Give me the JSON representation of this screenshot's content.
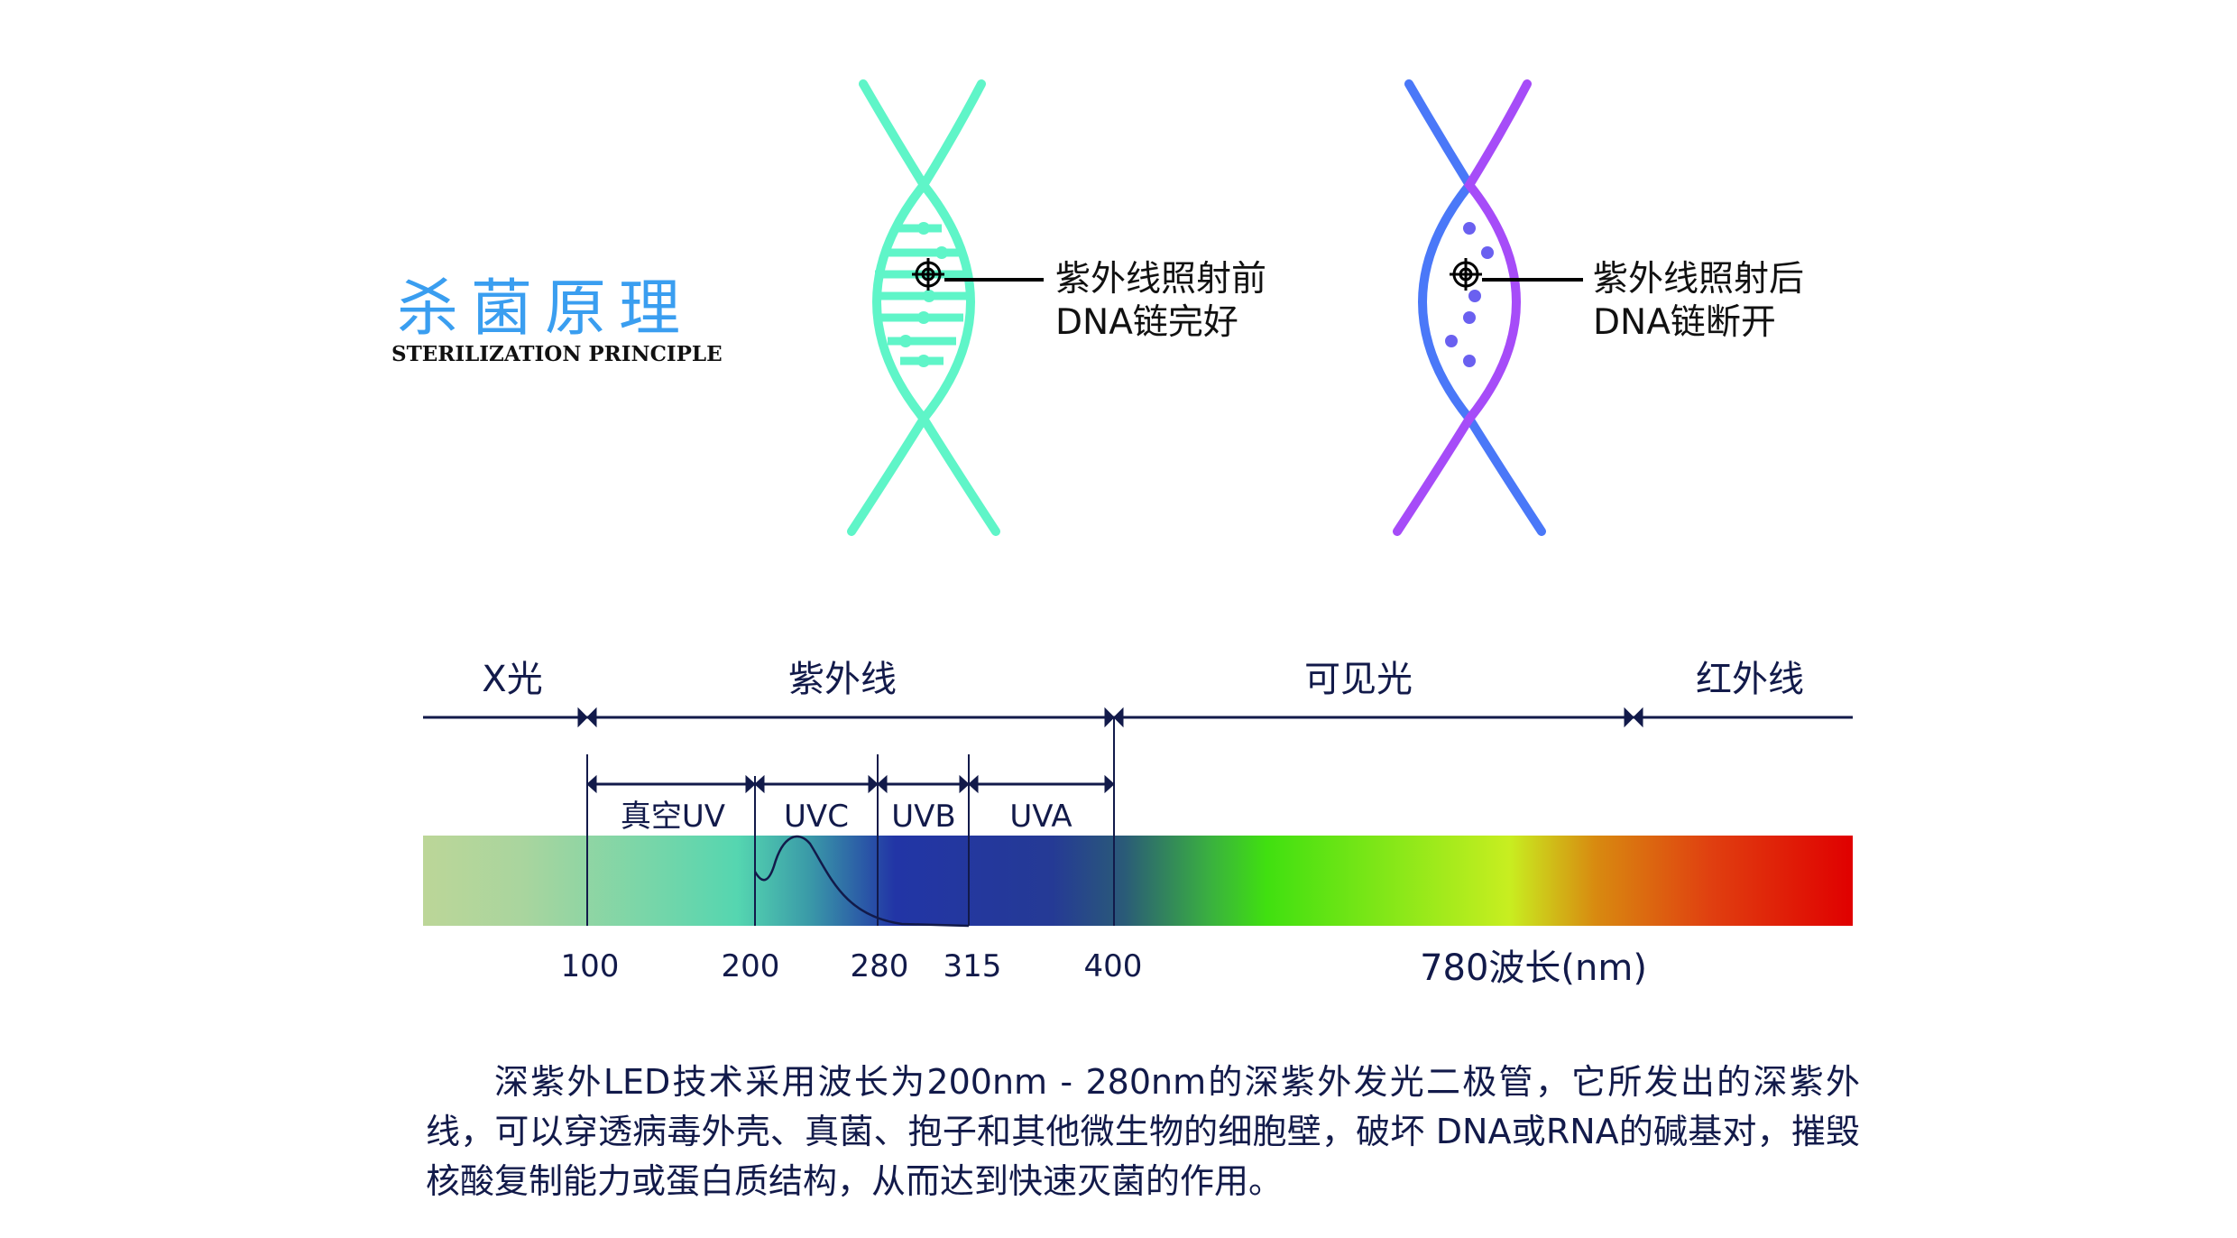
{
  "title": {
    "cn": "杀菌原理",
    "en": "STERILIZATION PRINCIPLE",
    "color": "#3a9ef0"
  },
  "dna_before": {
    "line1": "紫外线照射前",
    "line2": "DNA链完好",
    "color": "#5ff5c8"
  },
  "dna_after": {
    "line1": "紫外线照射后",
    "line2": "DNA链断开",
    "colors": [
      "#3f7cf8",
      "#b04cf8"
    ]
  },
  "spectrum": {
    "regions": [
      "X光",
      "紫外线",
      "可见光",
      "红外线"
    ],
    "uv_bands": [
      "真空UV",
      "UVC",
      "UVB",
      "UVA"
    ],
    "ticks": [
      "100",
      "200",
      "280",
      "315",
      "400"
    ],
    "axis_label": "780波长(nm)",
    "line_color": "#121a4a"
  },
  "description": "深紫外LED技术采用波长为200nm - 280nm的深紫外发光二极管，它所发出的深紫外线，可以穿透病毒外壳、真菌、抱子和其他微生物的细胞壁，破坏 DNA或RNA的碱基对，摧毁核酸复制能力或蛋白质结构，从而达到快速灭菌的作用。"
}
